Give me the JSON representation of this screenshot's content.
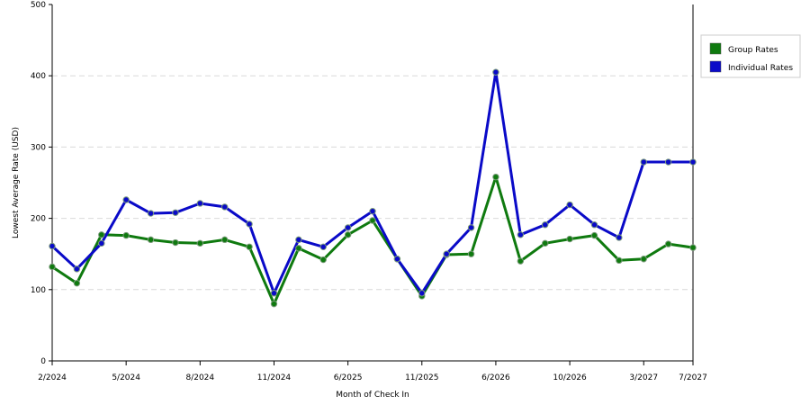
{
  "chart_data": {
    "type": "line",
    "title": "",
    "xlabel": "Month of Check In",
    "ylabel": "Lowest Average Rate (USD)",
    "ylim": [
      0,
      500
    ],
    "yticks": [
      0,
      100,
      200,
      300,
      400,
      500
    ],
    "grid": "horizontal dashed",
    "legend_position": "right",
    "x_tick_labels": [
      {
        "index": 0,
        "label": "2/2024"
      },
      {
        "index": 3,
        "label": "5/2024"
      },
      {
        "index": 6,
        "label": "8/2024"
      },
      {
        "index": 9,
        "label": "11/2024"
      },
      {
        "index": 12,
        "label": "6/2025"
      },
      {
        "index": 15,
        "label": "11/2025"
      },
      {
        "index": 18,
        "label": "6/2026"
      },
      {
        "index": 21,
        "label": "10/2026"
      },
      {
        "index": 24,
        "label": "3/2027"
      },
      {
        "index": 26,
        "label": "7/2027"
      }
    ],
    "series": [
      {
        "name": "Group Rates",
        "color": "#0f7a0f",
        "values": [
          132,
          109,
          177,
          176,
          170,
          166,
          165,
          170,
          160,
          80,
          158,
          142,
          177,
          197,
          143,
          91,
          149,
          150,
          258,
          140,
          165,
          171,
          176,
          141,
          143,
          164,
          159
        ]
      },
      {
        "name": "Individual Rates",
        "color": "#0a0ac8",
        "values": [
          161,
          129,
          165,
          226,
          207,
          208,
          221,
          216,
          192,
          95,
          170,
          160,
          187,
          210,
          143,
          95,
          150,
          187,
          405,
          177,
          191,
          219,
          191,
          173,
          279,
          279,
          279
        ]
      }
    ]
  }
}
